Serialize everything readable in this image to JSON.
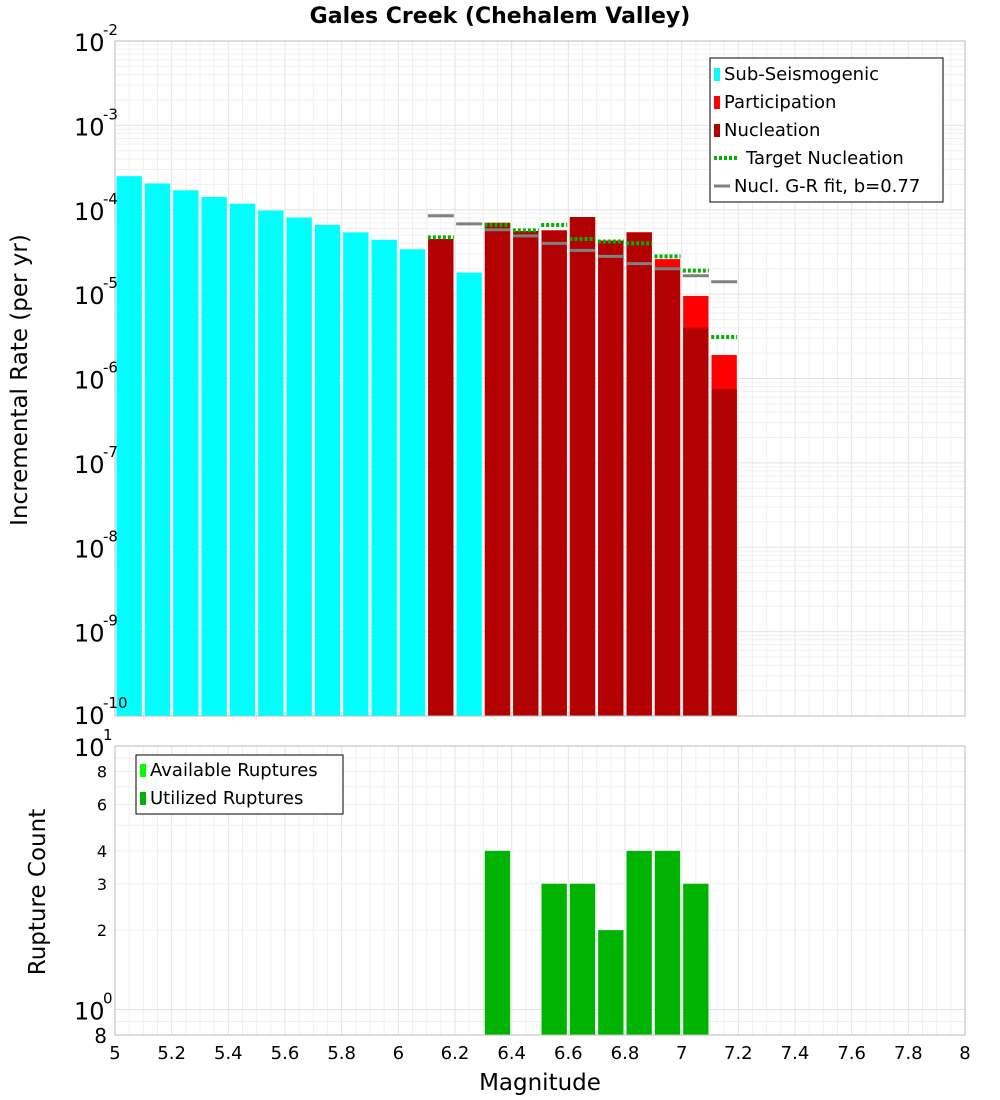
{
  "chart_data": [
    {
      "type": "bar",
      "title": "Gales Creek (Chehalem Valley)",
      "xlabel": "Magnitude",
      "ylabel": "Incremental Rate (per yr)",
      "yscale": "log",
      "xlim": [
        5,
        8
      ],
      "ylim": [
        1e-10,
        0.01
      ],
      "bin_width": 0.1,
      "x_ticks": [
        "5",
        "5.2",
        "5.4",
        "5.6",
        "5.8",
        "6",
        "6.2",
        "6.4",
        "6.6",
        "6.8",
        "7",
        "7.2",
        "7.4",
        "7.6",
        "7.8",
        "8"
      ],
      "y_ticks": [
        {
          "base": "10",
          "exp": "-10",
          "value": 1e-10
        },
        {
          "base": "10",
          "exp": "-9",
          "value": 1e-09
        },
        {
          "base": "10",
          "exp": "-8",
          "value": 1e-08
        },
        {
          "base": "10",
          "exp": "-7",
          "value": 1e-07
        },
        {
          "base": "10",
          "exp": "-6",
          "value": 1e-06
        },
        {
          "base": "10",
          "exp": "-5",
          "value": 1e-05
        },
        {
          "base": "10",
          "exp": "-4",
          "value": 0.0001
        },
        {
          "base": "10",
          "exp": "-3",
          "value": 0.001
        },
        {
          "base": "10",
          "exp": "-2",
          "value": 0.01
        }
      ],
      "legend_position": "top-right",
      "legend": [
        {
          "label": "Sub-Seismogenic",
          "color": "#00ffff",
          "kind": "box"
        },
        {
          "label": "Participation",
          "color": "#ff0000",
          "kind": "box"
        },
        {
          "label": "Nucleation",
          "color": "#b30000",
          "kind": "box"
        },
        {
          "label": "Target Nucleation",
          "color": "#00b300",
          "kind": "dotted"
        },
        {
          "label": "Nucl. G-R fit, b=0.77",
          "color": "#808080",
          "kind": "line"
        }
      ],
      "series": [
        {
          "name": "Sub-Seismogenic",
          "color": "#00ffff",
          "x": [
            5.05,
            5.15,
            5.25,
            5.35,
            5.45,
            5.55,
            5.65,
            5.75,
            5.85,
            5.95,
            6.05,
            6.25
          ],
          "values": [
            0.00025,
            0.000205,
            0.00017,
            0.000142,
            0.000118,
            9.8e-05,
            8.1e-05,
            6.6e-05,
            5.4e-05,
            4.4e-05,
            3.4e-05,
            1.8e-05
          ]
        },
        {
          "name": "Participation",
          "color": "#ff0000",
          "x": [
            6.15,
            6.35,
            6.45,
            6.55,
            6.65,
            6.75,
            6.85,
            6.95,
            7.05,
            7.15
          ],
          "values": [
            4.5e-05,
            7e-05,
            5.6e-05,
            5.7e-05,
            8.2e-05,
            4.3e-05,
            5.4e-05,
            2.6e-05,
            9.5e-06,
            1.9e-06
          ]
        },
        {
          "name": "Nucleation",
          "color": "#b30000",
          "x": [
            6.15,
            6.35,
            6.45,
            6.55,
            6.65,
            6.75,
            6.85,
            6.95,
            7.05,
            7.15
          ],
          "values": [
            4.5e-05,
            7e-05,
            5.6e-05,
            5.7e-05,
            8.2e-05,
            4.3e-05,
            5.4e-05,
            2.1e-05,
            4e-06,
            7.5e-07
          ]
        },
        {
          "name": "Target Nucleation",
          "color": "#00b300",
          "x": [
            6.15,
            6.35,
            6.45,
            6.55,
            6.65,
            6.75,
            6.85,
            6.95,
            7.05,
            7.15
          ],
          "values": [
            4.7e-05,
            6.6e-05,
            5.7e-05,
            6.6e-05,
            4.5e-05,
            4.2e-05,
            4e-05,
            2.8e-05,
            1.9e-05,
            3.1e-06
          ]
        },
        {
          "name": "Nucl. G-R fit, b=0.77",
          "color": "#808080",
          "x": [
            6.15,
            6.25,
            6.35,
            6.45,
            6.55,
            6.65,
            6.75,
            6.85,
            6.95,
            7.05,
            7.15
          ],
          "values": [
            8.5e-05,
            6.8e-05,
            5.8e-05,
            4.9e-05,
            4e-05,
            3.3e-05,
            2.8e-05,
            2.3e-05,
            2e-05,
            1.65e-05,
            1.4e-05
          ]
        }
      ]
    },
    {
      "type": "bar",
      "title": "",
      "xlabel": "Magnitude",
      "ylabel": "Rupture Count",
      "yscale": "log",
      "xlim": [
        5,
        8
      ],
      "ylim": [
        0.8,
        10
      ],
      "bin_width": 0.1,
      "y_ticks": [
        {
          "base": "10",
          "exp": "0",
          "value": 1
        },
        {
          "base": "10",
          "exp": "1",
          "value": 10
        }
      ],
      "y_minor_ticks": [
        {
          "label": "8",
          "value": 0.8
        },
        {
          "label": "2",
          "value": 2
        },
        {
          "label": "3",
          "value": 3
        },
        {
          "label": "4",
          "value": 4
        },
        {
          "label": "6",
          "value": 6
        },
        {
          "label": "8",
          "value": 8
        }
      ],
      "legend_position": "top-left",
      "legend": [
        {
          "label": "Available Ruptures",
          "color": "#00ff00",
          "kind": "box"
        },
        {
          "label": "Utilized Ruptures",
          "color": "#00b300",
          "kind": "box"
        }
      ],
      "series": [
        {
          "name": "Utilized Ruptures",
          "color": "#00b300",
          "x": [
            6.35,
            6.55,
            6.65,
            6.75,
            6.85,
            6.95,
            7.05
          ],
          "values": [
            4,
            3,
            3,
            2,
            4,
            4,
            3
          ]
        }
      ]
    }
  ]
}
